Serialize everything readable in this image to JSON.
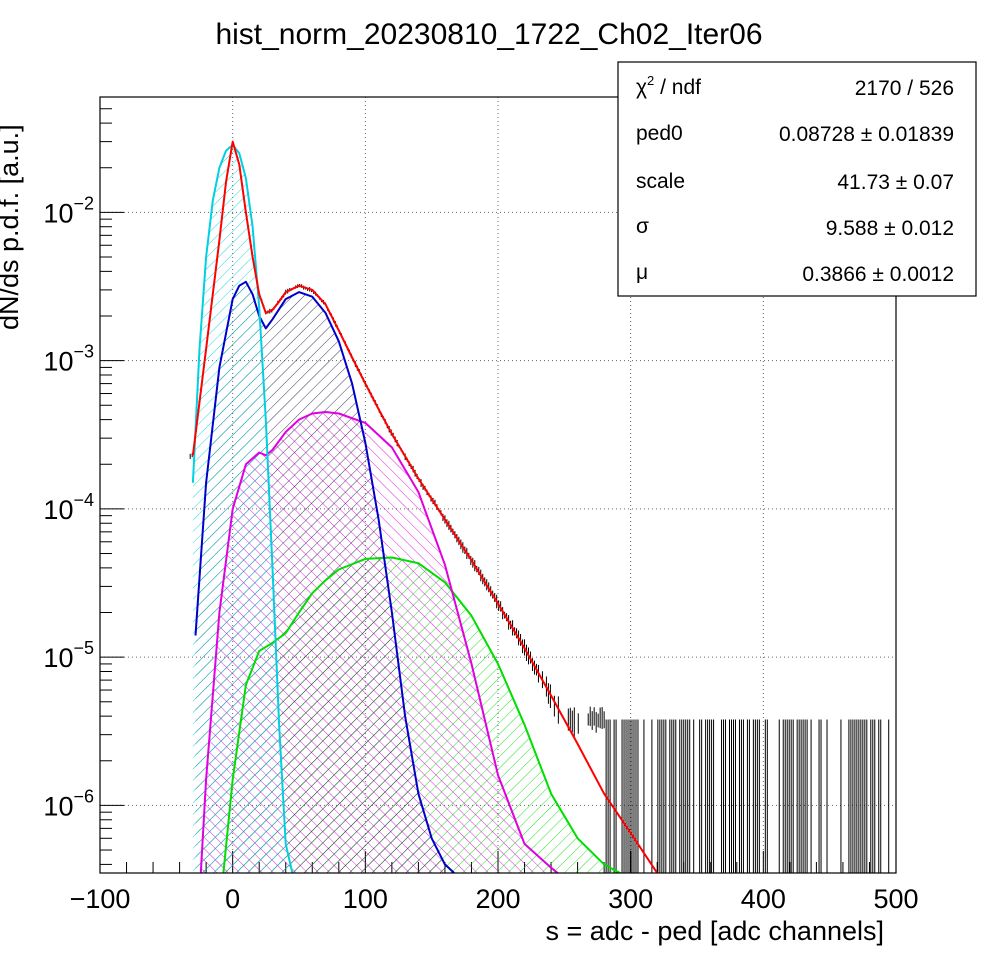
{
  "chart_data": {
    "type": "line",
    "title": "hist_norm_20230810_1722_Ch02_Iter06",
    "xlabel": "s = adc - ped [adc channels]",
    "ylabel": "dN/ds p.d.f. [a.u.]",
    "xlim": [
      -100,
      500
    ],
    "ylim": [
      3.5e-07,
      0.06
    ],
    "yscale": "log",
    "grid": true,
    "xticks": [
      "−100",
      "0",
      "100",
      "200",
      "300",
      "400",
      "500"
    ],
    "xtick_values": [
      -100,
      0,
      100,
      200,
      300,
      400,
      500
    ],
    "yticks": [
      {
        "value": 0.01,
        "base": "10",
        "exp": "−2"
      },
      {
        "value": 0.001,
        "base": "10",
        "exp": "−3"
      },
      {
        "value": 0.0001,
        "base": "10",
        "exp": "−4"
      },
      {
        "value": 1e-05,
        "base": "10",
        "exp": "−5"
      },
      {
        "value": 1e-06,
        "base": "10",
        "exp": "−6"
      }
    ],
    "series": [
      {
        "color": "#ff0000",
        "x": [
          -30,
          -20,
          -10,
          -5,
          0,
          5,
          10,
          15,
          20,
          25,
          30,
          35,
          40,
          50,
          60,
          70,
          80,
          90,
          100,
          110,
          120,
          140,
          160,
          180,
          200,
          220,
          240,
          260,
          280,
          300,
          320
        ],
        "y": [
          0.00023,
          0.0012,
          0.0065,
          0.016,
          0.03,
          0.021,
          0.01,
          0.005,
          0.0028,
          0.0021,
          0.0022,
          0.0025,
          0.0029,
          0.0032,
          0.003,
          0.0024,
          0.0016,
          0.00105,
          0.0007,
          0.00047,
          0.00032,
          0.00016,
          8.5e-05,
          4.5e-05,
          2.3e-05,
          1.15e-05,
          5.5e-06,
          2.6e-06,
          1.2e-06,
          6.5e-07,
          3.5e-07
        ]
      },
      {
        "color": "#00d0e0",
        "x": [
          -30,
          -25,
          -20,
          -15,
          -10,
          -5,
          0,
          5,
          10,
          15,
          20,
          25,
          30,
          35,
          40,
          45
        ],
        "y": [
          0.00015,
          0.0012,
          0.005,
          0.012,
          0.02,
          0.026,
          0.0285,
          0.025,
          0.017,
          0.008,
          0.0023,
          0.0004,
          4e-05,
          3.5e-06,
          5.5e-07,
          3.5e-07
        ]
      },
      {
        "color": "#0000cc",
        "x": [
          -28,
          -20,
          -10,
          0,
          5,
          10,
          15,
          20,
          25,
          30,
          40,
          50,
          60,
          70,
          80,
          90,
          100,
          110,
          120,
          130,
          140,
          150,
          160,
          167
        ],
        "y": [
          1.4e-05,
          0.00015,
          0.0009,
          0.0026,
          0.0032,
          0.0034,
          0.0028,
          0.002,
          0.00165,
          0.0019,
          0.0026,
          0.0029,
          0.0027,
          0.0021,
          0.00135,
          0.0007,
          0.00028,
          8.5e-05,
          2e-05,
          4e-06,
          1.2e-06,
          6e-07,
          4e-07,
          3.5e-07
        ]
      },
      {
        "color": "#e000e0",
        "x": [
          -24,
          -20,
          -10,
          0,
          10,
          20,
          25,
          30,
          40,
          50,
          60,
          70,
          80,
          100,
          120,
          140,
          160,
          180,
          200,
          220,
          240,
          245
        ],
        "y": [
          3.5e-07,
          1.5e-06,
          2e-05,
          0.0001,
          0.0002,
          0.00024,
          0.00023,
          0.00025,
          0.00033,
          0.0004,
          0.00044,
          0.00045,
          0.00044,
          0.00038,
          0.00026,
          0.00013,
          4.2e-05,
          9e-06,
          1.6e-06,
          5.5e-07,
          3.8e-07,
          3.5e-07
        ]
      },
      {
        "color": "#00dd00",
        "x": [
          -7,
          0,
          10,
          20,
          30,
          40,
          50,
          60,
          70,
          80,
          100,
          120,
          140,
          160,
          180,
          200,
          220,
          240,
          260,
          280,
          292
        ],
        "y": [
          3.5e-07,
          1.5e-06,
          6.5e-06,
          1.1e-05,
          1.25e-05,
          1.45e-05,
          2e-05,
          2.7e-05,
          3.3e-05,
          3.9e-05,
          4.6e-05,
          4.7e-05,
          4.3e-05,
          3.2e-05,
          1.9e-05,
          9e-06,
          3.5e-06,
          1.2e-06,
          6e-07,
          4e-07,
          3.5e-07
        ]
      }
    ],
    "stats_box": {
      "rows": [
        {
          "label": "χ",
          "label_sup": "2",
          "label_rest": " / ndf",
          "value": "2170 / 526"
        },
        {
          "label": "ped0",
          "value": "0.08728 ± 0.01839"
        },
        {
          "label": "scale",
          "value": "41.73 ± 0.07"
        },
        {
          "label": "σ",
          "value": "9.588 ± 0.012"
        },
        {
          "label": "μ",
          "value": "0.3866 ± 0.0012"
        }
      ]
    }
  }
}
